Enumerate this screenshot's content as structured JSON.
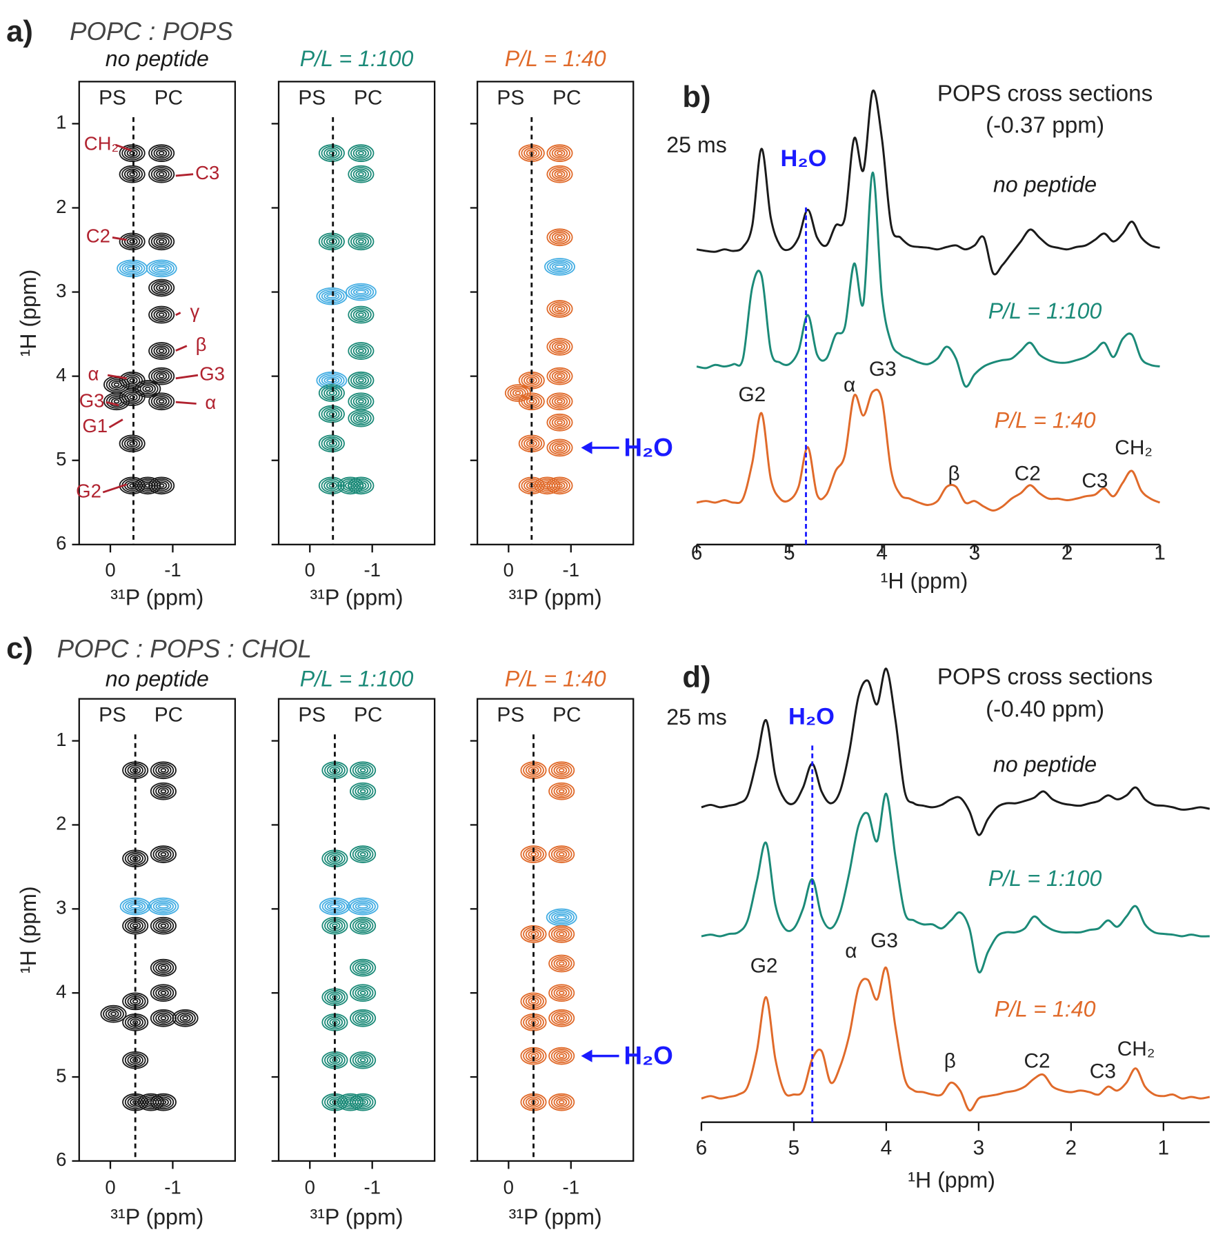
{
  "panel_a": {
    "letter": "a)",
    "title": "POPC : POPS",
    "ylabel": "¹H (ppm)",
    "xlabel": "³¹P (ppm)",
    "ylim": [
      6,
      0.5
    ],
    "yticks": [
      1,
      2,
      3,
      4,
      5,
      6
    ],
    "xlim": [
      0.5,
      -2
    ],
    "xticks": [
      0,
      -1
    ],
    "cross_section": -0.37,
    "column_labels": [
      "PS",
      "PC"
    ],
    "arrow_label": "H₂O",
    "arrow_ppm": 4.85,
    "annotations": [
      "CH₂",
      "C3",
      "C2",
      "γ",
      "β",
      "α",
      "G3",
      "G3",
      "α",
      "G1",
      "G2"
    ],
    "spectra": [
      {
        "name": "no peptide",
        "color": "#1a1a1a",
        "peaks": [
          {
            "x": -0.35,
            "y": 1.35
          },
          {
            "x": -0.35,
            "y": 1.6
          },
          {
            "x": -0.35,
            "y": 2.4
          },
          {
            "x": -0.35,
            "y": 2.72,
            "negative": true
          },
          {
            "x": -0.35,
            "y": 4.05
          },
          {
            "x": -0.35,
            "y": 4.25
          },
          {
            "x": -0.35,
            "y": 4.8
          },
          {
            "x": -0.35,
            "y": 5.3
          },
          {
            "x": -0.1,
            "y": 4.1
          },
          {
            "x": -0.1,
            "y": 4.3
          },
          {
            "x": -0.82,
            "y": 1.35
          },
          {
            "x": -0.82,
            "y": 1.6
          },
          {
            "x": -0.82,
            "y": 2.4
          },
          {
            "x": -0.82,
            "y": 2.72,
            "negative": true
          },
          {
            "x": -0.82,
            "y": 2.95
          },
          {
            "x": -0.82,
            "y": 3.27
          },
          {
            "x": -0.82,
            "y": 3.7
          },
          {
            "x": -0.82,
            "y": 4.0
          },
          {
            "x": -0.82,
            "y": 4.3
          },
          {
            "x": -0.6,
            "y": 4.15
          },
          {
            "x": -0.82,
            "y": 5.3
          },
          {
            "x": -0.6,
            "y": 5.3
          }
        ]
      },
      {
        "name": "P/L = 1:100",
        "color": "#1b8a78",
        "peaks": [
          {
            "x": -0.35,
            "y": 1.35
          },
          {
            "x": -0.35,
            "y": 2.4
          },
          {
            "x": -0.35,
            "y": 3.05,
            "negative": true
          },
          {
            "x": -0.35,
            "y": 4.05,
            "negative": true
          },
          {
            "x": -0.35,
            "y": 4.2
          },
          {
            "x": -0.35,
            "y": 4.45
          },
          {
            "x": -0.35,
            "y": 4.8
          },
          {
            "x": -0.35,
            "y": 5.3
          },
          {
            "x": -0.82,
            "y": 1.35
          },
          {
            "x": -0.82,
            "y": 1.6
          },
          {
            "x": -0.82,
            "y": 2.4
          },
          {
            "x": -0.82,
            "y": 3.0,
            "negative": true
          },
          {
            "x": -0.82,
            "y": 3.27
          },
          {
            "x": -0.82,
            "y": 3.7
          },
          {
            "x": -0.82,
            "y": 4.05
          },
          {
            "x": -0.82,
            "y": 4.3
          },
          {
            "x": -0.82,
            "y": 4.5
          },
          {
            "x": -0.82,
            "y": 5.3
          },
          {
            "x": -0.65,
            "y": 5.3
          }
        ]
      },
      {
        "name": "P/L = 1:40",
        "color": "#e06a2a",
        "peaks": [
          {
            "x": -0.37,
            "y": 1.35
          },
          {
            "x": -0.37,
            "y": 4.05
          },
          {
            "x": -0.37,
            "y": 4.3
          },
          {
            "x": -0.15,
            "y": 4.2
          },
          {
            "x": -0.37,
            "y": 4.8
          },
          {
            "x": -0.37,
            "y": 5.3
          },
          {
            "x": -0.82,
            "y": 1.35
          },
          {
            "x": -0.82,
            "y": 1.6
          },
          {
            "x": -0.82,
            "y": 2.35
          },
          {
            "x": -0.82,
            "y": 2.7,
            "negative": true
          },
          {
            "x": -0.82,
            "y": 3.2
          },
          {
            "x": -0.82,
            "y": 3.65
          },
          {
            "x": -0.82,
            "y": 4.0
          },
          {
            "x": -0.82,
            "y": 4.3
          },
          {
            "x": -0.82,
            "y": 4.55
          },
          {
            "x": -0.82,
            "y": 4.85
          },
          {
            "x": -0.82,
            "y": 5.3
          },
          {
            "x": -0.62,
            "y": 5.3
          }
        ]
      }
    ]
  },
  "panel_b": {
    "letter": "b)",
    "title": "POPS cross sections",
    "subtitle": "(-0.37 ppm)",
    "mixing": "25 ms",
    "h2o": "H₂O",
    "h2o_ppm": 4.82,
    "xlabel": "¹H (ppm)",
    "xlim": [
      6,
      1
    ],
    "xticks": [
      6,
      5,
      4,
      3,
      2,
      1
    ],
    "annotations": [
      "G2",
      "α",
      "G3",
      "β",
      "C2",
      "C3",
      "CH₂"
    ],
    "x": [
      6.0,
      5.9,
      5.8,
      5.7,
      5.6,
      5.5,
      5.4,
      5.3,
      5.2,
      5.1,
      5.0,
      4.9,
      4.8,
      4.7,
      4.6,
      4.5,
      4.4,
      4.3,
      4.2,
      4.1,
      4.0,
      3.9,
      3.8,
      3.7,
      3.6,
      3.5,
      3.4,
      3.3,
      3.2,
      3.1,
      3.0,
      2.9,
      2.8,
      2.7,
      2.6,
      2.5,
      2.4,
      2.3,
      2.2,
      2.1,
      2.0,
      1.9,
      1.8,
      1.7,
      1.6,
      1.5,
      1.4,
      1.3,
      1.2,
      1.1,
      1.0
    ],
    "series": [
      {
        "name": "no peptide",
        "color": "#1a1a1a",
        "values": [
          0,
          -2,
          -3,
          0,
          -2,
          3,
          30,
          127,
          40,
          5,
          0,
          15,
          50,
          15,
          5,
          30,
          40,
          140,
          100,
          200,
          140,
          30,
          15,
          5,
          3,
          2,
          0,
          3,
          5,
          0,
          5,
          15,
          -30,
          -20,
          -5,
          10,
          25,
          15,
          5,
          2,
          0,
          3,
          5,
          12,
          20,
          10,
          20,
          35,
          15,
          5,
          2
        ]
      },
      {
        "name": "P/L = 1:100",
        "color": "#1b8a78",
        "values": [
          0,
          -2,
          2,
          0,
          3,
          10,
          100,
          115,
          20,
          5,
          3,
          20,
          65,
          15,
          10,
          40,
          50,
          130,
          80,
          245,
          90,
          30,
          15,
          10,
          5,
          3,
          10,
          25,
          10,
          -25,
          -10,
          0,
          5,
          8,
          10,
          20,
          30,
          15,
          8,
          5,
          5,
          8,
          12,
          20,
          30,
          12,
          35,
          40,
          10,
          2,
          0
        ]
      },
      {
        "name": "P/L = 1:40",
        "color": "#e06a2a",
        "values": [
          0,
          2,
          0,
          3,
          0,
          5,
          50,
          113,
          30,
          5,
          3,
          20,
          70,
          10,
          10,
          40,
          60,
          135,
          110,
          140,
          130,
          40,
          10,
          5,
          0,
          -3,
          2,
          20,
          20,
          0,
          2,
          -5,
          -10,
          -5,
          5,
          12,
          22,
          12,
          5,
          5,
          3,
          5,
          8,
          10,
          18,
          8,
          25,
          40,
          15,
          5,
          0
        ]
      }
    ]
  },
  "panel_c": {
    "letter": "c)",
    "title": "POPC : POPS : CHOL",
    "ylabel": "¹H (ppm)",
    "xlabel": "³¹P (ppm)",
    "ylim": [
      6,
      0.5
    ],
    "yticks": [
      1,
      2,
      3,
      4,
      5,
      6
    ],
    "xlim": [
      0.5,
      -2
    ],
    "xticks": [
      0,
      -1
    ],
    "cross_section": -0.4,
    "column_labels": [
      "PS",
      "PC"
    ],
    "arrow_label": "H₂O",
    "arrow_ppm": 4.75,
    "spectra": [
      {
        "name": "no peptide",
        "color": "#1a1a1a",
        "peaks": [
          {
            "x": -0.4,
            "y": 1.35
          },
          {
            "x": -0.4,
            "y": 2.4
          },
          {
            "x": -0.4,
            "y": 2.97,
            "negative": true
          },
          {
            "x": -0.4,
            "y": 3.2
          },
          {
            "x": -0.4,
            "y": 4.1
          },
          {
            "x": -0.4,
            "y": 4.35
          },
          {
            "x": -0.05,
            "y": 4.25
          },
          {
            "x": -0.4,
            "y": 4.8
          },
          {
            "x": -0.4,
            "y": 5.3
          },
          {
            "x": -0.85,
            "y": 1.35
          },
          {
            "x": -0.85,
            "y": 1.6
          },
          {
            "x": -0.85,
            "y": 2.35
          },
          {
            "x": -0.85,
            "y": 2.97,
            "negative": true
          },
          {
            "x": -0.85,
            "y": 3.2
          },
          {
            "x": -0.85,
            "y": 3.7
          },
          {
            "x": -0.85,
            "y": 4.0
          },
          {
            "x": -0.85,
            "y": 4.3
          },
          {
            "x": -1.2,
            "y": 4.3
          },
          {
            "x": -0.65,
            "y": 5.3
          },
          {
            "x": -0.85,
            "y": 5.3
          }
        ]
      },
      {
        "name": "P/L = 1:100",
        "color": "#1b8a78",
        "peaks": [
          {
            "x": -0.4,
            "y": 1.35
          },
          {
            "x": -0.4,
            "y": 2.4
          },
          {
            "x": -0.4,
            "y": 2.97,
            "negative": true
          },
          {
            "x": -0.4,
            "y": 3.2
          },
          {
            "x": -0.4,
            "y": 4.05
          },
          {
            "x": -0.4,
            "y": 4.35
          },
          {
            "x": -0.4,
            "y": 4.8
          },
          {
            "x": -0.4,
            "y": 5.3
          },
          {
            "x": -0.85,
            "y": 1.35
          },
          {
            "x": -0.85,
            "y": 1.6
          },
          {
            "x": -0.85,
            "y": 2.35
          },
          {
            "x": -0.85,
            "y": 2.97,
            "negative": true
          },
          {
            "x": -0.85,
            "y": 3.2
          },
          {
            "x": -0.85,
            "y": 3.7
          },
          {
            "x": -0.85,
            "y": 4.0
          },
          {
            "x": -0.85,
            "y": 4.3
          },
          {
            "x": -0.85,
            "y": 4.8
          },
          {
            "x": -0.65,
            "y": 5.3
          },
          {
            "x": -0.85,
            "y": 5.3
          }
        ]
      },
      {
        "name": "P/L = 1:40",
        "color": "#e06a2a",
        "peaks": [
          {
            "x": -0.4,
            "y": 1.35
          },
          {
            "x": -0.4,
            "y": 2.35
          },
          {
            "x": -0.4,
            "y": 3.3
          },
          {
            "x": -0.4,
            "y": 4.1
          },
          {
            "x": -0.4,
            "y": 4.35
          },
          {
            "x": -0.4,
            "y": 4.75
          },
          {
            "x": -0.4,
            "y": 5.3
          },
          {
            "x": -0.85,
            "y": 1.35
          },
          {
            "x": -0.85,
            "y": 1.6
          },
          {
            "x": -0.85,
            "y": 2.35
          },
          {
            "x": -0.85,
            "y": 3.1,
            "negative": true
          },
          {
            "x": -0.85,
            "y": 3.3
          },
          {
            "x": -0.85,
            "y": 3.65
          },
          {
            "x": -0.85,
            "y": 4.0
          },
          {
            "x": -0.85,
            "y": 4.3
          },
          {
            "x": -0.85,
            "y": 4.75
          },
          {
            "x": -0.85,
            "y": 5.3
          }
        ]
      }
    ]
  },
  "panel_d": {
    "letter": "d)",
    "title": "POPS cross sections",
    "subtitle": "(-0.40 ppm)",
    "mixing": "25 ms",
    "h2o": "H₂O",
    "h2o_ppm": 4.8,
    "xlabel": "¹H (ppm)",
    "xlim": [
      6,
      0.5
    ],
    "xticks": [
      6,
      5,
      4,
      3,
      2,
      1
    ],
    "annotations": [
      "G2",
      "α",
      "G3",
      "β",
      "C2",
      "C3",
      "CH₂"
    ],
    "x": [
      6.0,
      5.9,
      5.8,
      5.7,
      5.6,
      5.5,
      5.4,
      5.3,
      5.2,
      5.1,
      5.0,
      4.9,
      4.8,
      4.7,
      4.6,
      4.5,
      4.4,
      4.3,
      4.2,
      4.1,
      4.0,
      3.9,
      3.8,
      3.7,
      3.6,
      3.5,
      3.4,
      3.3,
      3.2,
      3.1,
      3.0,
      2.9,
      2.8,
      2.7,
      2.6,
      2.5,
      2.4,
      2.3,
      2.2,
      2.1,
      2.0,
      1.9,
      1.8,
      1.7,
      1.6,
      1.5,
      1.4,
      1.3,
      1.2,
      1.1,
      1.0,
      0.9,
      0.8,
      0.7,
      0.6,
      0.5
    ],
    "series": [
      {
        "name": "no peptide",
        "color": "#1a1a1a",
        "values": [
          0,
          3,
          0,
          2,
          5,
          15,
          60,
          110,
          40,
          10,
          5,
          25,
          55,
          20,
          5,
          20,
          70,
          140,
          160,
          130,
          175,
          110,
          20,
          5,
          2,
          0,
          3,
          10,
          12,
          -5,
          -35,
          -15,
          0,
          5,
          5,
          8,
          12,
          20,
          10,
          5,
          3,
          2,
          5,
          8,
          15,
          10,
          15,
          25,
          10,
          3,
          2,
          0,
          -3,
          -2,
          0,
          -2
        ]
      },
      {
        "name": "P/L = 1:100",
        "color": "#1b8a78",
        "values": [
          0,
          2,
          0,
          3,
          5,
          20,
          70,
          118,
          40,
          10,
          10,
          35,
          72,
          25,
          10,
          30,
          80,
          140,
          155,
          120,
          180,
          100,
          30,
          20,
          15,
          15,
          10,
          20,
          30,
          10,
          -45,
          -20,
          0,
          5,
          5,
          10,
          25,
          15,
          8,
          5,
          5,
          5,
          8,
          10,
          20,
          12,
          25,
          38,
          15,
          5,
          3,
          2,
          0,
          2,
          0,
          0
        ]
      },
      {
        "name": "P/L = 1:40",
        "color": "#e06a2a",
        "values": [
          0,
          3,
          0,
          2,
          5,
          15,
          60,
          128,
          50,
          8,
          5,
          10,
          50,
          60,
          20,
          40,
          80,
          140,
          150,
          125,
          165,
          90,
          25,
          10,
          8,
          5,
          5,
          20,
          10,
          -15,
          0,
          3,
          5,
          8,
          10,
          15,
          25,
          30,
          15,
          10,
          8,
          10,
          8,
          5,
          15,
          10,
          20,
          38,
          15,
          5,
          3,
          5,
          0,
          2,
          0,
          2
        ]
      }
    ]
  }
}
